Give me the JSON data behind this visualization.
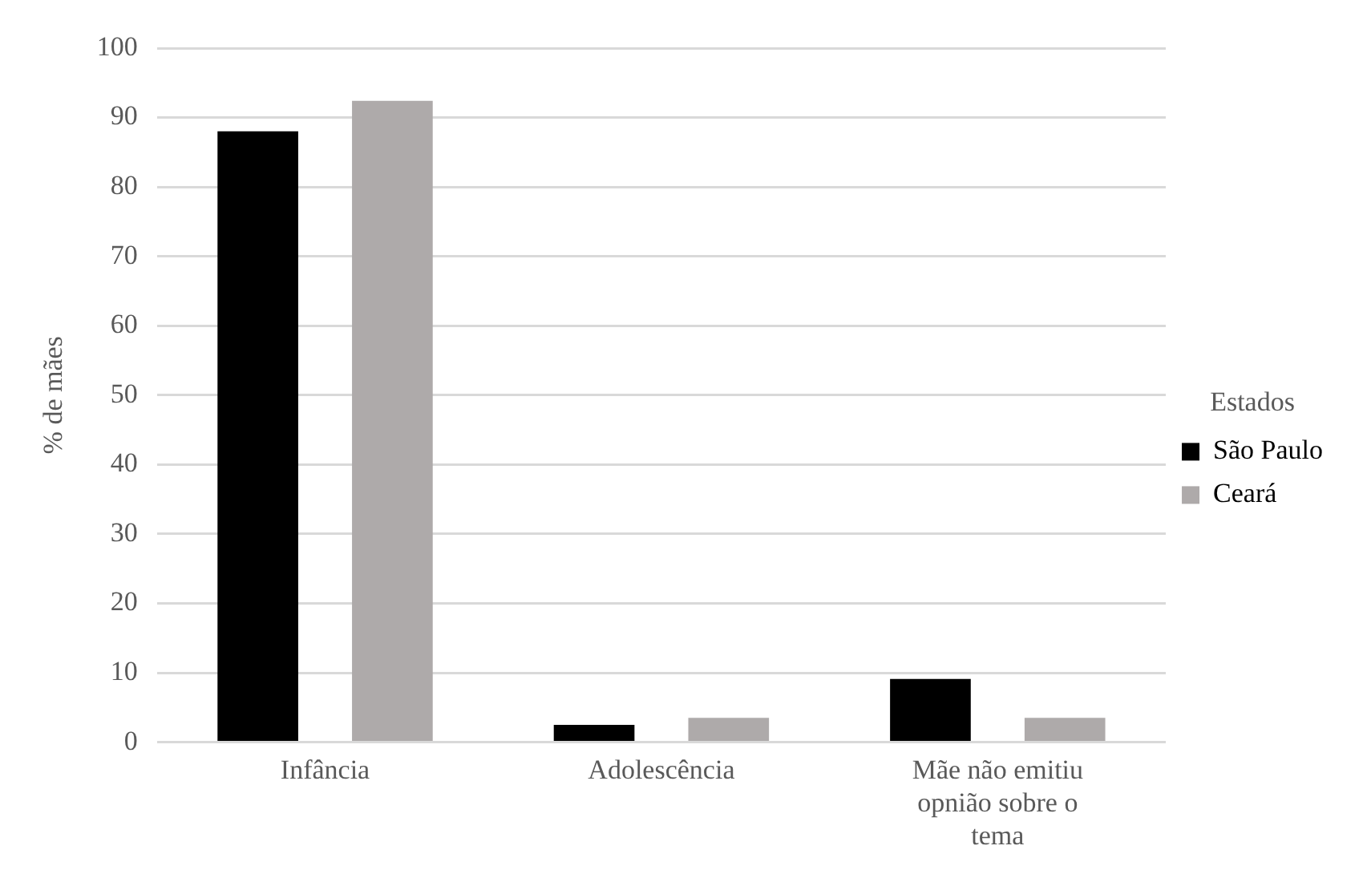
{
  "chart_data": {
    "type": "bar",
    "ylabel": "% de mães",
    "legend_title": "Estados",
    "categories": [
      "Infância",
      "Adolescência",
      "Mãe não emitiu opnião sobre o tema"
    ],
    "series": [
      {
        "name": "São Paulo",
        "color": "#000000",
        "values": [
          88,
          2.5,
          9.1
        ]
      },
      {
        "name": "Ceará",
        "color": "#aeaaaa",
        "values": [
          92.4,
          3.5,
          3.5
        ]
      }
    ],
    "ylim": [
      0,
      100
    ],
    "yticks": [
      0,
      10,
      20,
      30,
      40,
      50,
      60,
      70,
      80,
      90,
      100
    ],
    "grid": "y",
    "legend": "right"
  }
}
